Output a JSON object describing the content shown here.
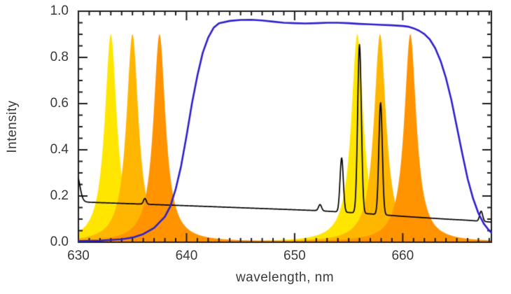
{
  "chart_data": {
    "type": "line",
    "title": "",
    "xlabel": "wavelength, nm",
    "ylabel": "Intensity",
    "xlim": [
      630,
      668.2
    ],
    "ylim": [
      0,
      1.0
    ],
    "x_major_ticks": [
      630,
      640,
      650,
      660
    ],
    "x_minor_step": 1,
    "y_major_ticks": [
      0.0,
      0.2,
      0.4,
      0.6,
      0.8,
      1.0
    ],
    "y_minor_step": 0.05,
    "grid": false,
    "background_color": "#ffffff",
    "frame_color": "#1c1c1c",
    "text_color": "#3a3a3a",
    "filter_bands": {
      "name": "tunable-filter-passbands",
      "profile": "lorentzian",
      "height": 0.9,
      "hwhm_nm": 0.68,
      "groups": [
        {
          "label": "yellow-passband-pair",
          "color": "#ffe600",
          "centers_nm": [
            633.0,
            655.8
          ]
        },
        {
          "label": "amber-passband-pair",
          "color": "#ffb600",
          "centers_nm": [
            635.0,
            657.9
          ]
        },
        {
          "label": "orange-passband-pair",
          "color": "#ff9400",
          "centers_nm": [
            637.5,
            660.7
          ]
        }
      ]
    },
    "prefilter_curve": {
      "name": "prefilter-transmission",
      "color": "#2f22cc",
      "line_width": 2.6,
      "points": [
        [
          630,
          0.005
        ],
        [
          632,
          0.007
        ],
        [
          634,
          0.013
        ],
        [
          635,
          0.02
        ],
        [
          636,
          0.035
        ],
        [
          637,
          0.062
        ],
        [
          638,
          0.11
        ],
        [
          638.5,
          0.155
        ],
        [
          639,
          0.23
        ],
        [
          639.5,
          0.33
        ],
        [
          640,
          0.46
        ],
        [
          640.5,
          0.6
        ],
        [
          641,
          0.72
        ],
        [
          641.5,
          0.82
        ],
        [
          642,
          0.885
        ],
        [
          642.5,
          0.928
        ],
        [
          643,
          0.948
        ],
        [
          644,
          0.958
        ],
        [
          645,
          0.962
        ],
        [
          646,
          0.963
        ],
        [
          647,
          0.96
        ],
        [
          648,
          0.955
        ],
        [
          649,
          0.95
        ],
        [
          650,
          0.948
        ],
        [
          651,
          0.947
        ],
        [
          652,
          0.948
        ],
        [
          653,
          0.95
        ],
        [
          654,
          0.95
        ],
        [
          655,
          0.948
        ],
        [
          656,
          0.945
        ],
        [
          657,
          0.943
        ],
        [
          658,
          0.941
        ],
        [
          659,
          0.939
        ],
        [
          660,
          0.936
        ],
        [
          660.5,
          0.933
        ],
        [
          661,
          0.926
        ],
        [
          661.5,
          0.916
        ],
        [
          662,
          0.901
        ],
        [
          662.5,
          0.878
        ],
        [
          663,
          0.84
        ],
        [
          663.5,
          0.785
        ],
        [
          664,
          0.71
        ],
        [
          664.5,
          0.615
        ],
        [
          665,
          0.5
        ],
        [
          665.5,
          0.385
        ],
        [
          666,
          0.275
        ],
        [
          666.5,
          0.19
        ],
        [
          667,
          0.125
        ],
        [
          667.5,
          0.08
        ],
        [
          668,
          0.05
        ],
        [
          668.2,
          0.042
        ]
      ]
    },
    "spectrum_curve": {
      "name": "solar-spectrum",
      "color": "#000000",
      "line_width": 1.7,
      "baseline_points": [
        [
          630,
          0.177
        ],
        [
          631,
          0.173
        ],
        [
          640,
          0.158
        ],
        [
          648,
          0.144
        ],
        [
          652,
          0.137
        ],
        [
          656,
          0.126
        ],
        [
          660,
          0.112
        ],
        [
          664,
          0.1
        ],
        [
          666,
          0.095
        ],
        [
          668.2,
          0.087
        ]
      ],
      "peaks": [
        {
          "center_nm": 629.85,
          "amplitude": 0.115,
          "sigma_nm": 0.28
        },
        {
          "center_nm": 636.15,
          "amplitude": 0.025,
          "sigma_nm": 0.13
        },
        {
          "center_nm": 652.35,
          "amplitude": 0.027,
          "sigma_nm": 0.14
        },
        {
          "center_nm": 654.35,
          "amplitude": 0.235,
          "sigma_nm": 0.15
        },
        {
          "center_nm": 656.0,
          "amplitude": 0.73,
          "sigma_nm": 0.17
        },
        {
          "center_nm": 657.95,
          "amplitude": 0.485,
          "sigma_nm": 0.16
        },
        {
          "center_nm": 667.25,
          "amplitude": 0.044,
          "sigma_nm": 0.14
        }
      ]
    }
  }
}
